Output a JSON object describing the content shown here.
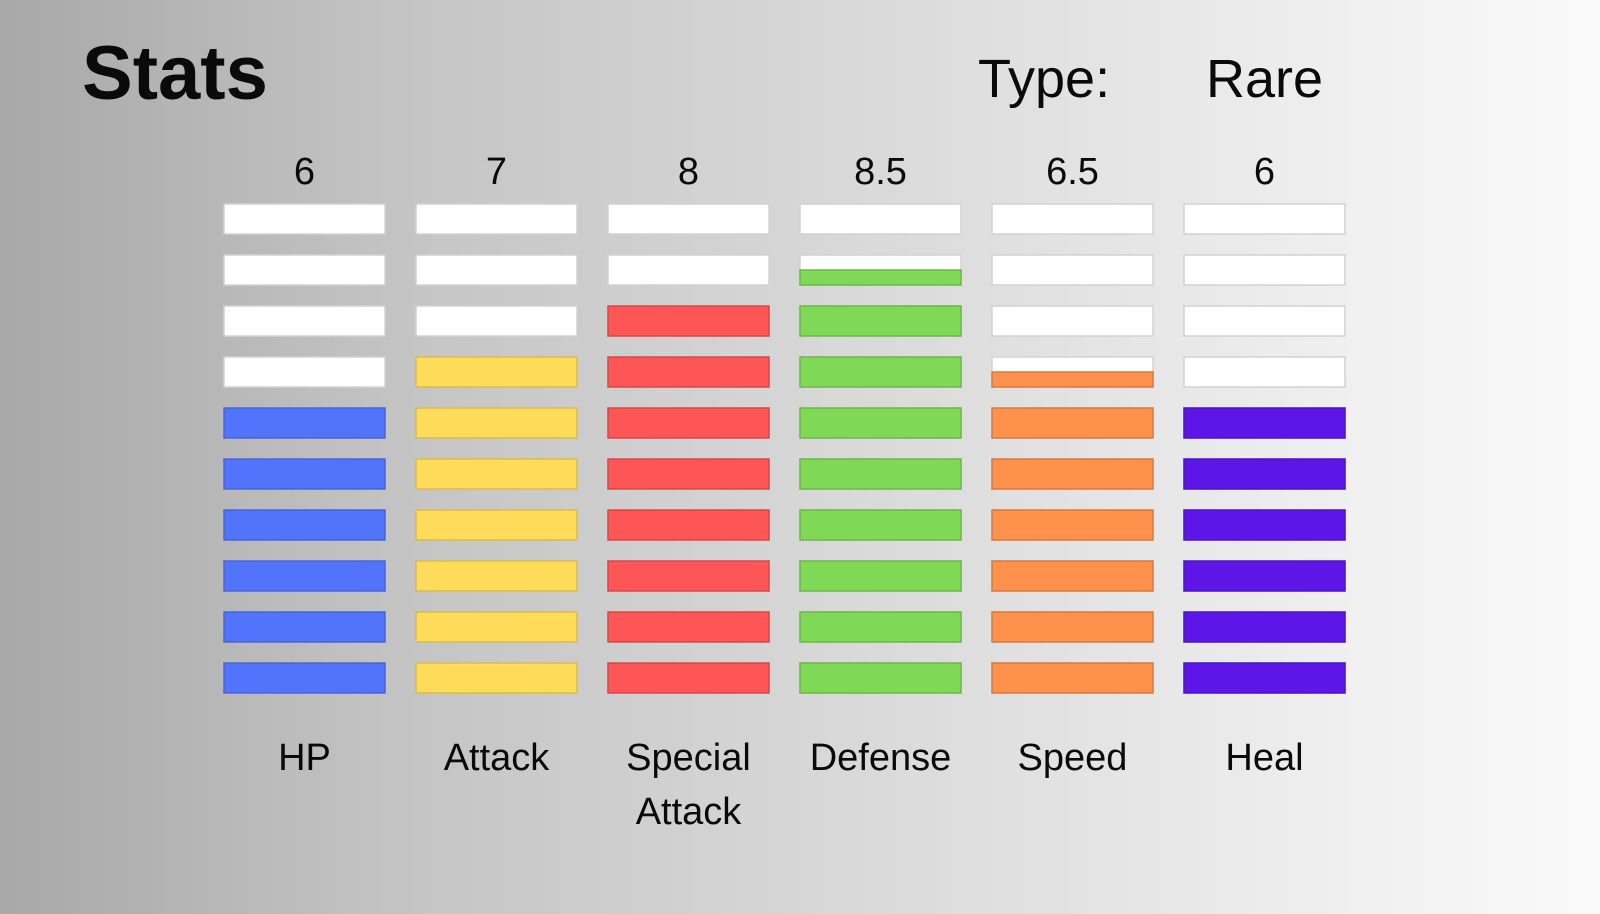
{
  "header": {
    "title": "Stats",
    "type_label": "Type:",
    "type_value": "Rare"
  },
  "chart_data": {
    "type": "bar",
    "segments_per_bar": 10,
    "categories": [
      "HP",
      "Attack",
      "Special Attack",
      "Defense",
      "Speed",
      "Heal"
    ],
    "category_lines": [
      [
        "HP"
      ],
      [
        "Attack"
      ],
      [
        "Special",
        "Attack"
      ],
      [
        "Defense"
      ],
      [
        "Speed"
      ],
      [
        "Heal"
      ]
    ],
    "values": [
      6,
      7,
      8,
      8.5,
      6.5,
      6
    ],
    "value_labels": [
      "6",
      "7",
      "8",
      "8.5",
      "6.5",
      "6"
    ],
    "colors": [
      "#5274fa",
      "#fedc5a",
      "#fe5556",
      "#7fd956",
      "#fe914b",
      "#5d16e8"
    ],
    "empty_color": "#ffffff",
    "ylim": [
      0,
      10
    ]
  }
}
